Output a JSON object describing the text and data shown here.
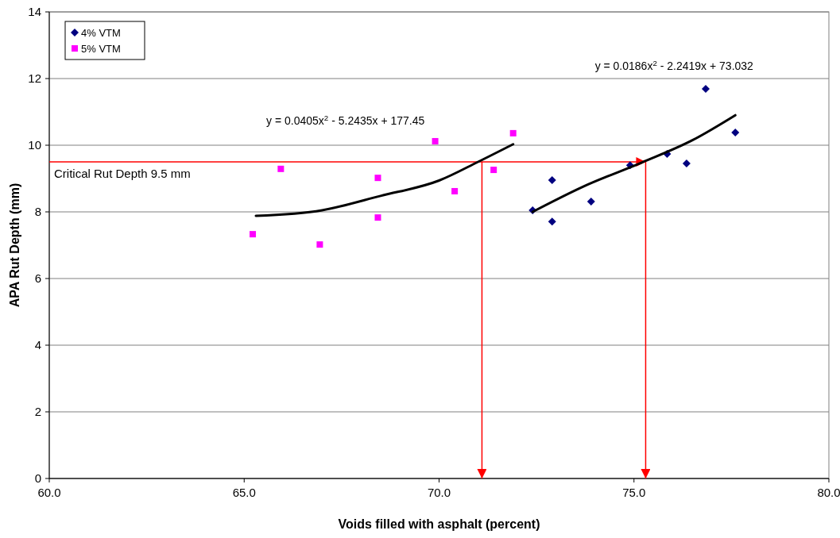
{
  "chart_data": {
    "type": "scatter",
    "xlabel": "Voids filled with asphalt (percent)",
    "ylabel": "APA Rut Depth (mm)",
    "xlim": [
      60,
      80
    ],
    "xticks": [
      {
        "value": 60,
        "label": "60.0"
      },
      {
        "value": 65,
        "label": "65.0"
      },
      {
        "value": 70,
        "label": "70.0"
      },
      {
        "value": 75,
        "label": "75.0"
      },
      {
        "value": 80,
        "label": "80.0"
      }
    ],
    "ylim": [
      0,
      14
    ],
    "yticks": [
      0,
      2,
      4,
      6,
      8,
      10,
      12,
      14
    ],
    "grid": "y",
    "legend": "top left",
    "series": [
      {
        "name": "4%  VTM",
        "color": "#000080",
        "marker": "diamond",
        "x": [
          72.4,
          72.9,
          72.9,
          73.9,
          74.9,
          75.85,
          76.35,
          76.84,
          77.6
        ],
        "values": [
          8.05,
          8.95,
          7.71,
          8.31,
          9.4,
          9.74,
          9.45,
          11.69,
          10.38
        ]
      },
      {
        "name": "5% VTM",
        "color": "#ff00ff",
        "marker": "square",
        "x": [
          65.22,
          65.94,
          66.94,
          68.43,
          68.43,
          69.9,
          70.4,
          71.4,
          71.9
        ],
        "values": [
          7.33,
          9.29,
          7.02,
          9.02,
          7.83,
          10.12,
          8.62,
          9.26,
          10.36
        ]
      },
      {
        "type": "line",
        "color": "#000000",
        "marker": "none",
        "x": [
          65.3,
          67,
          68.5,
          70,
          71,
          71.9
        ],
        "values": [
          7.88,
          8.05,
          8.48,
          8.94,
          9.5,
          10.03
        ]
      },
      {
        "type": "line",
        "color": "#000000",
        "marker": "none",
        "x": [
          72.4,
          73.7,
          75.2,
          76.5,
          77.6
        ],
        "values": [
          8.0,
          8.76,
          9.48,
          10.15,
          10.9
        ]
      }
    ],
    "ref_lines": [
      {
        "axis": "y",
        "value": 9.5,
        "label": "Critical Rut Depth 9.5 mm",
        "color": "#ff0000"
      },
      {
        "axis": "x",
        "value": 71.1,
        "color": "#ff0000"
      },
      {
        "axis": "x",
        "value": 75.3,
        "color": "#ff0000"
      }
    ],
    "annotations": [
      "y = 0.0405x$^{2}$ - 5.2435x + 177.45",
      "y = 0.0186x$^{2}$ - 2.2419x + 73.032"
    ]
  }
}
